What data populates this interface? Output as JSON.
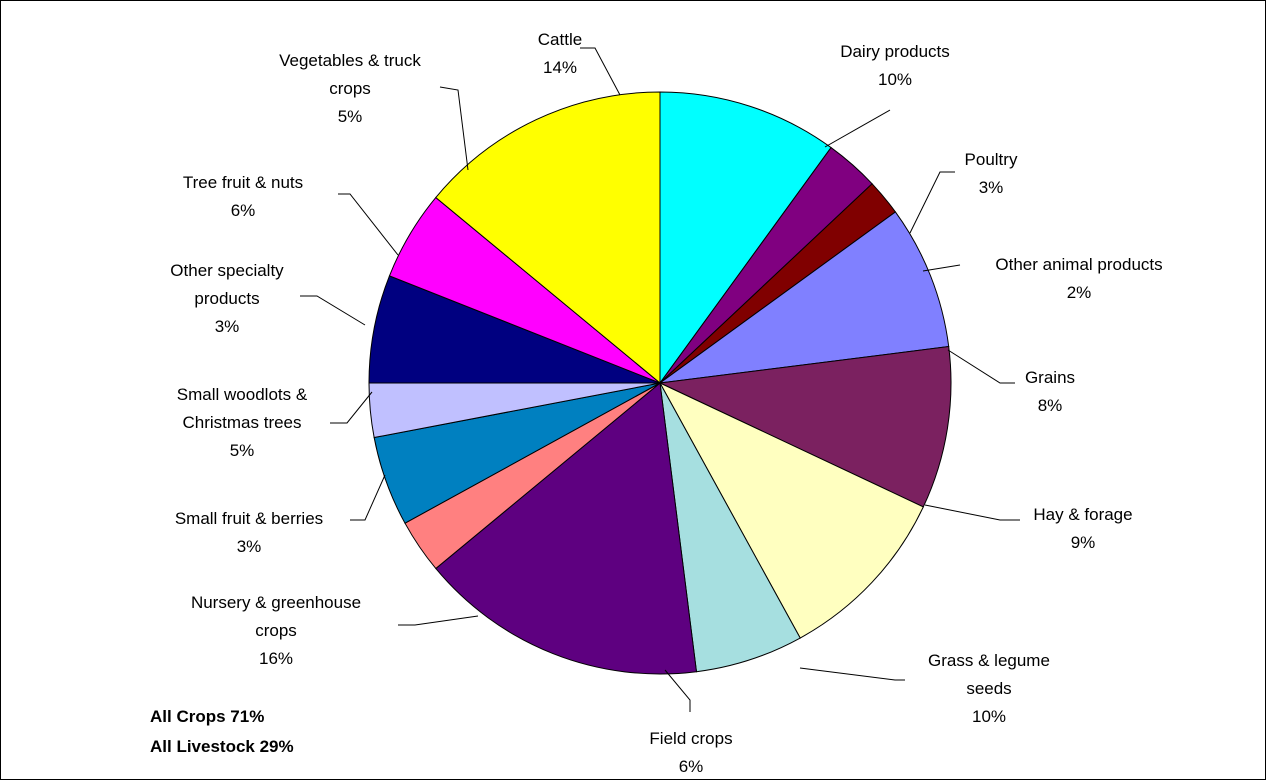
{
  "chart_data": {
    "type": "pie",
    "start_at": "top",
    "direction": "clockwise",
    "slices": [
      {
        "label_lines": [
          "Dairy products",
          "10%"
        ],
        "value": 10,
        "color": "#00FFFF"
      },
      {
        "label_lines": [
          "Poultry",
          "3%"
        ],
        "value": 3,
        "color": "#800080"
      },
      {
        "label_lines": [
          "Other animal products",
          "2%"
        ],
        "value": 2,
        "color": "#800000"
      },
      {
        "label_lines": [
          "Grains",
          "8%"
        ],
        "value": 8,
        "color": "#8080FF"
      },
      {
        "label_lines": [
          "Hay & forage",
          "9%"
        ],
        "value": 9,
        "color": "#7B2160"
      },
      {
        "label_lines": [
          "Grass & legume",
          "seeds",
          "10%"
        ],
        "value": 10,
        "color": "#FFFFC0"
      },
      {
        "label_lines": [
          "Field crops",
          "6%"
        ],
        "value": 6,
        "color": "#A6DFE0"
      },
      {
        "label_lines": [
          "Nursery & greenhouse",
          "crops",
          "16%"
        ],
        "value": 16,
        "color": "#5E0080"
      },
      {
        "label_lines": [
          "Small fruit & berries",
          "3%"
        ],
        "value": 3,
        "color": "#FF8080"
      },
      {
        "label_lines": [
          "Small woodlots &",
          "Christmas trees",
          "5%"
        ],
        "value": 5,
        "color": "#0080C0"
      },
      {
        "label_lines": [
          "Other specialty",
          "products",
          "3%"
        ],
        "value": 3,
        "color": "#C0C0FF"
      },
      {
        "label_lines": [
          "Tree fruit & nuts",
          "6%"
        ],
        "value": 6,
        "color": "#000080"
      },
      {
        "label_lines": [
          "Vegetables & truck",
          "crops",
          "5%"
        ],
        "value": 5,
        "color": "#FF00FF"
      },
      {
        "label_lines": [
          "Cattle",
          "14%"
        ],
        "value": 14,
        "color": "#FFFF00"
      }
    ]
  },
  "summary": {
    "crops": "All Crops 71%",
    "livestock": "All Livestock 29%"
  }
}
